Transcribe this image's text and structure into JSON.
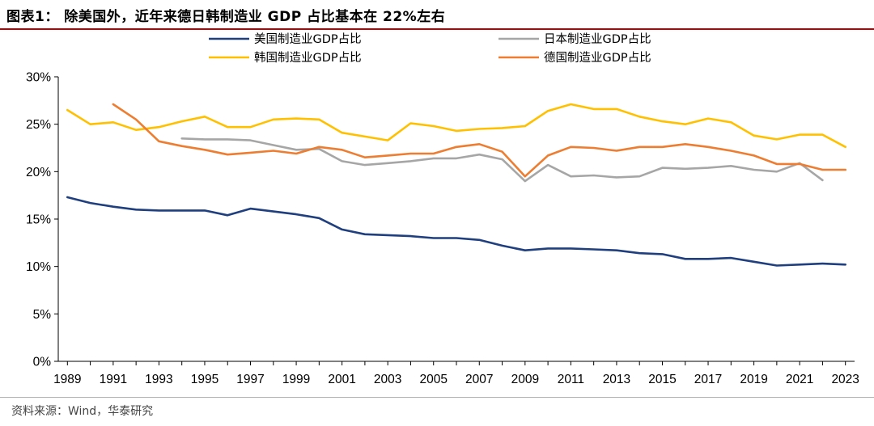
{
  "figure": {
    "title": "图表1：  除美国外，近年来德日韩制造业 GDP 占比基本在 22%左右",
    "source": "资料来源：Wind，华泰研究"
  },
  "chart_data": {
    "type": "line",
    "xlim": [
      1988.6,
      2023.4
    ],
    "ylim": [
      0,
      30
    ],
    "x_ticks": [
      "1989",
      "1991",
      "1993",
      "1995",
      "1997",
      "1999",
      "2001",
      "2003",
      "2005",
      "2007",
      "2009",
      "2011",
      "2013",
      "2015",
      "2017",
      "2019",
      "2021",
      "2023"
    ],
    "y_ticks": [
      "0%",
      "5%",
      "10%",
      "15%",
      "20%",
      "25%",
      "30%"
    ],
    "grid": false,
    "legend_position": "top",
    "series": [
      {
        "name": "美国制造业GDP占比",
        "color": "#1f3f7f",
        "x": [
          1989,
          1990,
          1991,
          1992,
          1993,
          1994,
          1995,
          1996,
          1997,
          1998,
          1999,
          2000,
          2001,
          2002,
          2003,
          2004,
          2005,
          2006,
          2007,
          2008,
          2009,
          2010,
          2011,
          2012,
          2013,
          2014,
          2015,
          2016,
          2017,
          2018,
          2019,
          2020,
          2021,
          2022,
          2023
        ],
        "values": [
          17.3,
          16.7,
          16.3,
          16.0,
          15.9,
          15.9,
          15.9,
          15.4,
          16.1,
          15.8,
          15.5,
          15.1,
          13.9,
          13.4,
          13.3,
          13.2,
          13.0,
          13.0,
          12.8,
          12.2,
          11.7,
          11.9,
          11.9,
          11.8,
          11.7,
          11.4,
          11.3,
          10.8,
          10.8,
          10.9,
          10.5,
          10.1,
          10.2,
          10.3,
          10.2
        ]
      },
      {
        "name": "日本制造业GDP占比",
        "color": "#a6a6a6",
        "x": [
          1994,
          1995,
          1996,
          1997,
          1998,
          1999,
          2000,
          2001,
          2002,
          2003,
          2004,
          2005,
          2006,
          2007,
          2008,
          2009,
          2010,
          2011,
          2012,
          2013,
          2014,
          2015,
          2016,
          2017,
          2018,
          2019,
          2020,
          2021,
          2022
        ],
        "values": [
          23.5,
          23.4,
          23.4,
          23.3,
          22.8,
          22.3,
          22.4,
          21.1,
          20.7,
          20.9,
          21.1,
          21.4,
          21.4,
          21.8,
          21.3,
          19.0,
          20.7,
          19.5,
          19.6,
          19.4,
          19.5,
          20.4,
          20.3,
          20.4,
          20.6,
          20.2,
          20.0,
          20.9,
          19.1
        ]
      },
      {
        "name": "韩国制造业GDP占比",
        "color": "#ffc000",
        "x": [
          1989,
          1990,
          1991,
          1992,
          1993,
          1994,
          1995,
          1996,
          1997,
          1998,
          1999,
          2000,
          2001,
          2002,
          2003,
          2004,
          2005,
          2006,
          2007,
          2008,
          2009,
          2010,
          2011,
          2012,
          2013,
          2014,
          2015,
          2016,
          2017,
          2018,
          2019,
          2020,
          2021,
          2022,
          2023
        ],
        "values": [
          26.5,
          25.0,
          25.2,
          24.4,
          24.7,
          25.3,
          25.8,
          24.7,
          24.7,
          25.5,
          25.6,
          25.5,
          24.1,
          23.7,
          23.3,
          25.1,
          24.8,
          24.3,
          24.5,
          24.6,
          24.8,
          26.4,
          27.1,
          26.6,
          26.6,
          25.8,
          25.3,
          25.0,
          25.6,
          25.2,
          23.8,
          23.4,
          23.9,
          23.9,
          22.6
        ]
      },
      {
        "name": "德国制造业GDP占比",
        "color": "#ed7d31",
        "x": [
          1991,
          1992,
          1993,
          1994,
          1995,
          1996,
          1997,
          1998,
          1999,
          2000,
          2001,
          2002,
          2003,
          2004,
          2005,
          2006,
          2007,
          2008,
          2009,
          2010,
          2011,
          2012,
          2013,
          2014,
          2015,
          2016,
          2017,
          2018,
          2019,
          2020,
          2021,
          2022,
          2023
        ],
        "values": [
          27.1,
          25.5,
          23.2,
          22.7,
          22.3,
          21.8,
          22.0,
          22.2,
          21.9,
          22.6,
          22.3,
          21.5,
          21.7,
          21.9,
          21.9,
          22.6,
          22.9,
          22.1,
          19.5,
          21.7,
          22.6,
          22.5,
          22.2,
          22.6,
          22.6,
          22.9,
          22.6,
          22.2,
          21.7,
          20.8,
          20.8,
          20.2,
          20.2
        ]
      }
    ]
  }
}
